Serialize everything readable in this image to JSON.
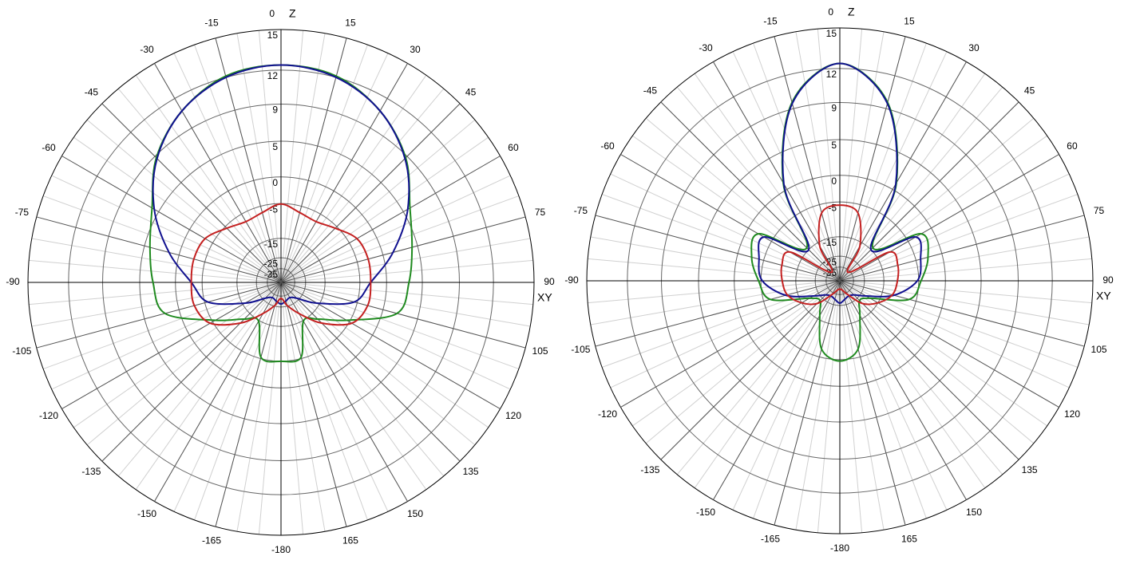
{
  "chart_data": [
    {
      "type": "polar",
      "z_label": "Z",
      "xy_label": "XY",
      "radial_scale": "arrl-log",
      "rlim": [
        -35,
        15
      ],
      "rticks": [
        15,
        12,
        9,
        5,
        0,
        -5,
        -15,
        -25,
        -35
      ],
      "angle_ticks": [
        0,
        15,
        30,
        45,
        60,
        75,
        90,
        105,
        120,
        135,
        150,
        165,
        -180,
        -165,
        -150,
        -135,
        -120,
        -105,
        -90,
        -75,
        -60,
        -45,
        -30,
        -15
      ],
      "theta": [
        0,
        15,
        30,
        45,
        60,
        75,
        90,
        105,
        120,
        135,
        150,
        165,
        180,
        195,
        210,
        225,
        240,
        255,
        270,
        285,
        300,
        315,
        330,
        345
      ],
      "series": [
        {
          "color": "#1f8a1f",
          "values": [
            12.4,
            12.1,
            10.8,
            8.8,
            5.9,
            4.3,
            3.3,
            2.2,
            -5.7,
            -12.2,
            -14.7,
            -5.3,
            -5.0,
            -5.3,
            -14.7,
            -12.2,
            -5.7,
            2.2,
            3.3,
            4.3,
            5.9,
            8.8,
            10.8,
            12.1
          ]
        },
        {
          "color": "#10108f",
          "values": [
            12.4,
            12.0,
            10.8,
            8.7,
            5.6,
            1.6,
            -2.8,
            -5.7,
            -16.0,
            -26.6,
            -30.8,
            -29.3,
            -27.2,
            -29.3,
            -30.8,
            -26.6,
            -16.0,
            -5.7,
            -2.8,
            1.6,
            5.6,
            8.7,
            10.8,
            12.0
          ]
        },
        {
          "color": "#c42020",
          "values": [
            -5.1,
            -6.5,
            -7.0,
            -5.5,
            -3.2,
            -2.7,
            -2.8,
            -2.8,
            -4.4,
            -10.4,
            -18.5,
            -25.5,
            -32.4,
            -25.5,
            -18.5,
            -10.4,
            -4.4,
            -2.8,
            -2.8,
            -2.7,
            -3.2,
            -5.5,
            -7.0,
            -6.5
          ]
        }
      ]
    },
    {
      "type": "polar",
      "z_label": "Z",
      "xy_label": "XY",
      "radial_scale": "arrl-log",
      "rlim": [
        -35,
        15
      ],
      "rticks": [
        15,
        12,
        9,
        5,
        0,
        -5,
        -15,
        -25,
        -35
      ],
      "angle_ticks": [
        0,
        15,
        30,
        45,
        60,
        75,
        90,
        105,
        120,
        135,
        150,
        165,
        -180,
        -165,
        -150,
        -135,
        -120,
        -105,
        -90,
        -75,
        -60,
        -45,
        -30,
        -15
      ],
      "theta": [
        0,
        15,
        30,
        45,
        60,
        75,
        90,
        105,
        120,
        135,
        150,
        165,
        180,
        195,
        210,
        225,
        240,
        255,
        270,
        285,
        300,
        315,
        330,
        345
      ],
      "series": [
        {
          "color": "#1f8a1f",
          "values": [
            12.4,
            9.6,
            1.2,
            -14.0,
            -2.0,
            -2.5,
            -4.5,
            -6.6,
            -19.0,
            -22.8,
            -16.6,
            -6.9,
            -4.7,
            -6.9,
            -16.6,
            -22.8,
            -19.0,
            -6.6,
            -4.5,
            -2.5,
            -2.0,
            -14.0,
            1.2,
            9.6
          ]
        },
        {
          "color": "#10108f",
          "values": [
            12.4,
            9.5,
            1.0,
            -15.0,
            -3.2,
            -4.0,
            -5.3,
            -10.9,
            -21.4,
            -28.6,
            -30.8,
            -29.3,
            -26.6,
            -29.3,
            -30.8,
            -28.6,
            -21.4,
            -10.9,
            -5.3,
            -4.0,
            -3.2,
            -15.0,
            1.0,
            9.5
          ]
        },
        {
          "color": "#c42020",
          "values": [
            -5.7,
            -7.0,
            -16.6,
            -37.3,
            -10.4,
            -9.7,
            -10.4,
            -11.4,
            -15.0,
            -20.4,
            -32.4,
            -41.0,
            -44.0,
            -41.0,
            -32.4,
            -20.4,
            -15.0,
            -11.4,
            -10.4,
            -9.7,
            -10.4,
            -37.3,
            -16.6,
            -7.0
          ]
        }
      ]
    }
  ]
}
